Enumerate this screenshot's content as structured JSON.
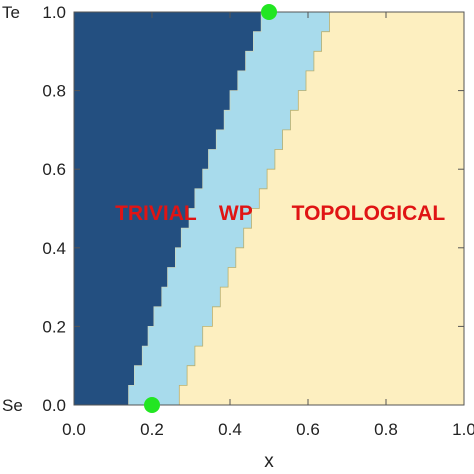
{
  "chart_data": {
    "type": "heatmap",
    "title": "",
    "xlabel": "x",
    "ylabel": "",
    "xlim": [
      0,
      1
    ],
    "ylim": [
      0,
      1
    ],
    "x_ticks": [
      "0.0",
      "0.2",
      "0.4",
      "0.6",
      "0.8",
      "1.0"
    ],
    "y_ticks": [
      "0.0",
      "0.2",
      "0.4",
      "0.6",
      "0.8",
      "1.0"
    ],
    "y_end_labels": {
      "bottom": "Se",
      "top": "Te"
    },
    "regions": [
      {
        "label": "TRIVIAL",
        "color": "#234f80",
        "label_at": {
          "x": 0.21,
          "y": 0.45
        }
      },
      {
        "label": "WP",
        "color": "#a8dbec",
        "label_at": {
          "x": 0.415,
          "y": 0.45
        }
      },
      {
        "label": "TOPOLOGICAL",
        "color": "#fdefc0",
        "label_at": {
          "x": 0.755,
          "y": 0.45
        }
      }
    ],
    "boundary_trivial_wp": {
      "y": [
        0.0,
        0.05,
        0.1,
        0.15,
        0.2,
        0.25,
        0.3,
        0.35,
        0.4,
        0.45,
        0.5,
        0.55,
        0.6,
        0.65,
        0.7,
        0.75,
        0.8,
        0.85,
        0.9,
        0.95,
        1.0
      ],
      "x": [
        0.14,
        0.155,
        0.175,
        0.19,
        0.205,
        0.225,
        0.24,
        0.26,
        0.275,
        0.295,
        0.31,
        0.33,
        0.345,
        0.365,
        0.385,
        0.4,
        0.42,
        0.44,
        0.46,
        0.48,
        0.5
      ]
    },
    "boundary_wp_topological": {
      "y": [
        0.0,
        0.05,
        0.1,
        0.15,
        0.2,
        0.25,
        0.3,
        0.35,
        0.4,
        0.45,
        0.5,
        0.55,
        0.6,
        0.65,
        0.7,
        0.75,
        0.8,
        0.85,
        0.9,
        0.95,
        1.0
      ],
      "x": [
        0.27,
        0.29,
        0.31,
        0.33,
        0.355,
        0.375,
        0.395,
        0.415,
        0.435,
        0.455,
        0.475,
        0.495,
        0.515,
        0.535,
        0.555,
        0.575,
        0.595,
        0.615,
        0.635,
        0.655,
        0.675
      ]
    },
    "markers": [
      {
        "x": 0.2,
        "y": 0.0,
        "color": "#22e622"
      },
      {
        "x": 0.5,
        "y": 1.0,
        "color": "#22e622"
      }
    ]
  }
}
